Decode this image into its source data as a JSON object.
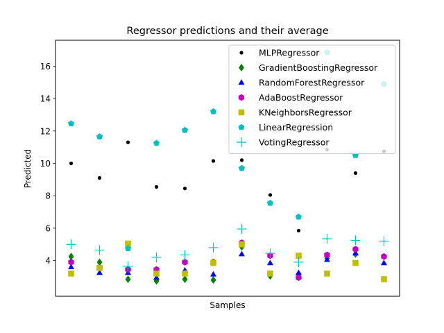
{
  "chart_data": {
    "type": "scatter",
    "title": "Regressor predictions and their average",
    "xlabel": "Samples",
    "ylabel": "Predicted",
    "x": [
      0,
      1,
      2,
      3,
      4,
      5,
      6,
      7,
      8,
      9,
      10,
      11
    ],
    "xlim": [
      -0.55,
      11.55
    ],
    "ylim": [
      1.8,
      17.6
    ],
    "yticks": [
      4,
      6,
      8,
      10,
      12,
      14,
      16
    ],
    "xticks": [],
    "grid": false,
    "legend_position": "top-right",
    "series": [
      {
        "name": "MLPRegressor",
        "marker": "dot",
        "color": "#000000",
        "values": [
          10.0,
          9.1,
          11.3,
          8.55,
          8.45,
          10.15,
          10.2,
          8.05,
          5.85,
          10.85,
          9.4,
          10.75
        ]
      },
      {
        "name": "GradientBoostingRegressor",
        "marker": "diamond",
        "color": "#008000",
        "values": [
          4.25,
          3.9,
          2.85,
          2.75,
          2.85,
          2.8,
          4.85,
          3.05,
          3.15,
          4.15,
          4.4,
          4.25
        ]
      },
      {
        "name": "RandomForestRegressor",
        "marker": "triangle",
        "color": "#0000ff",
        "values": [
          3.6,
          3.25,
          3.25,
          2.95,
          3.4,
          3.15,
          4.4,
          3.85,
          3.25,
          4.05,
          4.45,
          3.85
        ]
      },
      {
        "name": "AdaBoostRegressor",
        "marker": "hexagon",
        "color": "#bf00bf",
        "values": [
          3.9,
          3.55,
          3.45,
          3.45,
          3.9,
          3.9,
          5.1,
          4.3,
          2.95,
          4.35,
          4.7,
          4.25
        ]
      },
      {
        "name": "KNeighborsRegressor",
        "marker": "square",
        "color": "#bfbf00",
        "values": [
          3.2,
          3.55,
          5.05,
          3.2,
          3.2,
          3.85,
          5.0,
          3.2,
          4.3,
          3.2,
          3.85,
          2.85
        ]
      },
      {
        "name": "LinearRegression",
        "marker": "pentagon",
        "color": "#00bfbf",
        "values": [
          12.45,
          11.65,
          4.75,
          11.25,
          12.05,
          13.2,
          9.7,
          7.55,
          6.7,
          16.85,
          10.5,
          14.9
        ]
      },
      {
        "name": "VotingRegressor",
        "marker": "plus",
        "color": "#00bfbf",
        "values": [
          5.0,
          4.65,
          3.65,
          4.2,
          4.35,
          4.8,
          5.95,
          4.45,
          3.9,
          5.35,
          5.25,
          5.2
        ]
      }
    ]
  }
}
